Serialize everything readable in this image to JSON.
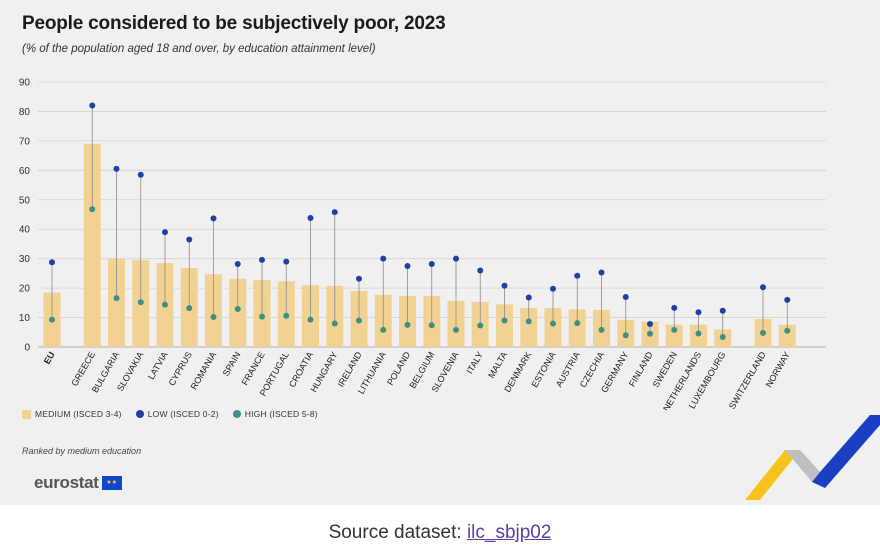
{
  "title": "People considered to be subjectively poor, 2023",
  "subtitle": "(% of the population aged 18 and over, by education attainment level)",
  "legend": {
    "medium": "MEDIUM (ISCED 3-4)",
    "low": "LOW (ISCED 0-2)",
    "high": "HIGH (ISCED 5-8)"
  },
  "note": "Ranked by medium education",
  "logo_text": "eurostat",
  "source": {
    "prefix": "Source dataset: ",
    "link_text": "ilc_sbjp02"
  },
  "colors": {
    "medium": "#f2d293",
    "low": "#1f3fa3",
    "high": "#3d8f87",
    "connector": "#8c8c8c",
    "grid": "#d4d4d4",
    "accent_yellow": "#f7c21b",
    "accent_blue": "#1b3fc2"
  },
  "chart_data": {
    "type": "bar",
    "title": "People considered to be subjectively poor, 2023",
    "ylabel": "%",
    "ylim": [
      0,
      90
    ],
    "yticks": [
      0,
      10,
      20,
      30,
      40,
      50,
      60,
      70,
      80,
      90
    ],
    "grid": true,
    "groups": [
      [
        "EU"
      ],
      [
        "GREECE",
        "BULGARIA",
        "SLOVAKIA",
        "LATVIA",
        "CYPRUS",
        "ROMANIA",
        "SPAIN",
        "FRANCE",
        "PORTUGAL",
        "CROATIA",
        "HUNGARY",
        "IRELAND",
        "LITHUANIA",
        "POLAND",
        "BELGIUM",
        "SLOVENIA",
        "ITALY",
        "MALTA",
        "DENMARK",
        "ESTONIA",
        "AUSTRIA",
        "CZECHIA",
        "GERMANY",
        "FINLAND",
        "SWEDEN",
        "NETHERLANDS",
        "LUXEMBOURG"
      ],
      [
        "SWITZERLAND",
        "NORWAY"
      ]
    ],
    "categories": [
      "EU",
      "GREECE",
      "BULGARIA",
      "SLOVAKIA",
      "LATVIA",
      "CYPRUS",
      "ROMANIA",
      "SPAIN",
      "FRANCE",
      "PORTUGAL",
      "CROATIA",
      "HUNGARY",
      "IRELAND",
      "LITHUANIA",
      "POLAND",
      "BELGIUM",
      "SLOVENIA",
      "ITALY",
      "MALTA",
      "DENMARK",
      "ESTONIA",
      "AUSTRIA",
      "CZECHIA",
      "GERMANY",
      "FINLAND",
      "SWEDEN",
      "NETHERLANDS",
      "LUXEMBOURG",
      "SWITZERLAND",
      "NORWAY"
    ],
    "series": [
      {
        "name": "MEDIUM (ISCED 3-4)",
        "kind": "bar",
        "values": [
          18.5,
          69,
          30,
          29.5,
          28.5,
          26.8,
          24.7,
          23.2,
          22.7,
          22.3,
          21,
          20.8,
          19,
          17.7,
          17.3,
          17.3,
          15.6,
          15.3,
          14.5,
          13.3,
          13.2,
          12.8,
          12.6,
          9.2,
          8.6,
          7.6,
          7.6,
          6,
          9.5,
          7.6
        ]
      },
      {
        "name": "LOW (ISCED 0-2)",
        "kind": "dot",
        "values": [
          28.8,
          82,
          60.5,
          58.5,
          39,
          36.5,
          43.7,
          28.2,
          29.6,
          29,
          43.8,
          45.8,
          23.2,
          30,
          27.5,
          28.2,
          30,
          26,
          20.8,
          16.8,
          19.8,
          24.2,
          25.3,
          17,
          7.8,
          13.3,
          11.8,
          12.3,
          20.3,
          16
        ]
      },
      {
        "name": "HIGH (ISCED 5-8)",
        "kind": "dot",
        "values": [
          9.3,
          46.8,
          16.6,
          15.2,
          14.4,
          13.2,
          10.2,
          12.9,
          10.3,
          10.6,
          9.3,
          8,
          9,
          5.8,
          7.5,
          7.4,
          5.8,
          7.3,
          9,
          8.7,
          8,
          8.1,
          5.8,
          4,
          4.5,
          5.8,
          4.6,
          3.4,
          4.8,
          5.5
        ]
      }
    ]
  }
}
